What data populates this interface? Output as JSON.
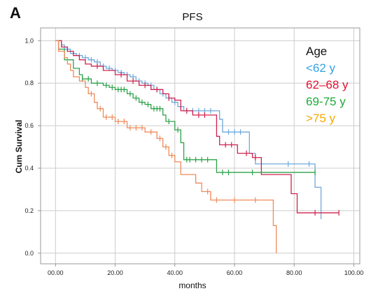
{
  "panel_label": "A",
  "colors": {
    "lt62": "#6fa8dc",
    "a62_68": "#d0224e",
    "a69_75": "#2ca24a",
    "gt75": "#f08a5a",
    "legend_lt62": "#33a3e6",
    "legend_62_68": "#e8102f",
    "legend_69_75": "#1faa3a",
    "legend_gt75": "#f7a800",
    "grid": "#cccccc",
    "axis": "#999999"
  },
  "chart_data": {
    "type": "line",
    "title": "PFS",
    "xlabel": "months",
    "ylabel": "Cum Survival",
    "xlim": [
      -5,
      102
    ],
    "ylim": [
      -0.05,
      1.06
    ],
    "x_ticks": [
      0,
      20,
      40,
      60,
      80,
      100
    ],
    "x_tick_labels": [
      "00.00",
      "20.00",
      "40.00",
      "60.00",
      "80.00",
      "100.00"
    ],
    "y_ticks": [
      0,
      0.2,
      0.4,
      0.6,
      0.8,
      1.0
    ],
    "y_tick_labels": [
      "0.0",
      "0.2",
      "0.4",
      "0.6",
      "0.8",
      "1.0"
    ],
    "grid": true,
    "legend_position": "top-right",
    "legend_title": "Age",
    "series": [
      {
        "name": "<62 y",
        "color_key": "lt62",
        "steps": [
          [
            0,
            1.0
          ],
          [
            2,
            0.98
          ],
          [
            3,
            0.96
          ],
          [
            5,
            0.94
          ],
          [
            7,
            0.93
          ],
          [
            9,
            0.92
          ],
          [
            11,
            0.91
          ],
          [
            13,
            0.9
          ],
          [
            15,
            0.88
          ],
          [
            17,
            0.87
          ],
          [
            19,
            0.86
          ],
          [
            21,
            0.85
          ],
          [
            23,
            0.84
          ],
          [
            25,
            0.83
          ],
          [
            27,
            0.81
          ],
          [
            29,
            0.8
          ],
          [
            31,
            0.79
          ],
          [
            33,
            0.77
          ],
          [
            35,
            0.75
          ],
          [
            37,
            0.73
          ],
          [
            39,
            0.71
          ],
          [
            41,
            0.69
          ],
          [
            43,
            0.67
          ],
          [
            55,
            0.63
          ],
          [
            56,
            0.57
          ],
          [
            65,
            0.47
          ],
          [
            67,
            0.42
          ],
          [
            87,
            0.31
          ],
          [
            89,
            0.16
          ]
        ],
        "end": 89,
        "censor_x": [
          4,
          6,
          8,
          10,
          12,
          14,
          16,
          18,
          20,
          22,
          24,
          26,
          28,
          30,
          32,
          34,
          36,
          38,
          40,
          42,
          44,
          46,
          48,
          50,
          52,
          58,
          60,
          62,
          78,
          85
        ]
      },
      {
        "name": "62–68 y",
        "color_key": "a62_68",
        "steps": [
          [
            0,
            1.0
          ],
          [
            2,
            0.97
          ],
          [
            4,
            0.95
          ],
          [
            6,
            0.93
          ],
          [
            8,
            0.91
          ],
          [
            10,
            0.89
          ],
          [
            12,
            0.88
          ],
          [
            16,
            0.86
          ],
          [
            20,
            0.84
          ],
          [
            24,
            0.81
          ],
          [
            28,
            0.79
          ],
          [
            32,
            0.77
          ],
          [
            36,
            0.75
          ],
          [
            38,
            0.73
          ],
          [
            40,
            0.72
          ],
          [
            42,
            0.67
          ],
          [
            46,
            0.65
          ],
          [
            54,
            0.55
          ],
          [
            55,
            0.51
          ],
          [
            61,
            0.47
          ],
          [
            66,
            0.45
          ],
          [
            69,
            0.37
          ],
          [
            79,
            0.28
          ],
          [
            81,
            0.19
          ]
        ],
        "end": 95,
        "censor_x": [
          14,
          22,
          26,
          30,
          34,
          38,
          44,
          48,
          50,
          57,
          59,
          64,
          67,
          87,
          95
        ]
      },
      {
        "name": "69-75 y",
        "color_key": "a69_75",
        "steps": [
          [
            0,
            1.0
          ],
          [
            1,
            0.96
          ],
          [
            3,
            0.91
          ],
          [
            6,
            0.87
          ],
          [
            8,
            0.84
          ],
          [
            9,
            0.82
          ],
          [
            12,
            0.8
          ],
          [
            16,
            0.79
          ],
          [
            18,
            0.78
          ],
          [
            20,
            0.77
          ],
          [
            24,
            0.75
          ],
          [
            26,
            0.73
          ],
          [
            28,
            0.71
          ],
          [
            30,
            0.7
          ],
          [
            32,
            0.68
          ],
          [
            36,
            0.65
          ],
          [
            37,
            0.62
          ],
          [
            40,
            0.58
          ],
          [
            42,
            0.52
          ],
          [
            43,
            0.44
          ],
          [
            54,
            0.38
          ]
        ],
        "end": 87,
        "censor_x": [
          9,
          11,
          14,
          17,
          19,
          21,
          22,
          23,
          25,
          27,
          29,
          31,
          33,
          34,
          35,
          38,
          41,
          44,
          45,
          47,
          49,
          51,
          56,
          58,
          66,
          87
        ]
      },
      {
        "name": ">75 y",
        "color_key": "gt75",
        "steps": [
          [
            0,
            1.0
          ],
          [
            1,
            0.95
          ],
          [
            3,
            0.92
          ],
          [
            4,
            0.89
          ],
          [
            5,
            0.86
          ],
          [
            6,
            0.83
          ],
          [
            8,
            0.81
          ],
          [
            10,
            0.78
          ],
          [
            11,
            0.75
          ],
          [
            13,
            0.71
          ],
          [
            14,
            0.68
          ],
          [
            16,
            0.64
          ],
          [
            20,
            0.62
          ],
          [
            24,
            0.59
          ],
          [
            30,
            0.57
          ],
          [
            34,
            0.54
          ],
          [
            36,
            0.5
          ],
          [
            38,
            0.46
          ],
          [
            40,
            0.43
          ],
          [
            42,
            0.37
          ],
          [
            47,
            0.33
          ],
          [
            49,
            0.29
          ],
          [
            52,
            0.25
          ],
          [
            73,
            0.13
          ],
          [
            74,
            0.0
          ]
        ],
        "end": 74,
        "censor_x": [
          12,
          15,
          17,
          19,
          21,
          23,
          25,
          27,
          29,
          32,
          35,
          37,
          39,
          51,
          54,
          60,
          67
        ]
      }
    ]
  }
}
